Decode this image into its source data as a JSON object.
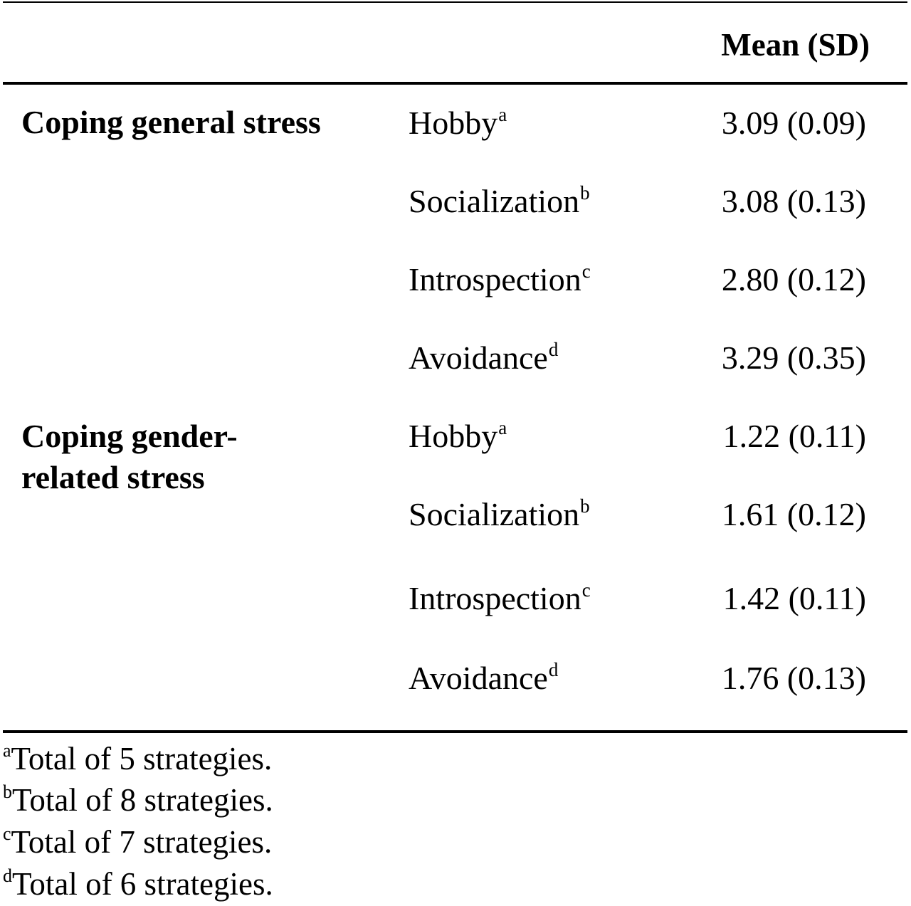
{
  "table": {
    "header": {
      "col1": "",
      "col2": "",
      "col3": "Mean (SD)"
    },
    "groups": [
      {
        "label": "Coping general stress",
        "rows": [
          {
            "strategy": "Hobby",
            "marker": "a",
            "value": "3.09 (0.09)"
          },
          {
            "strategy": "Socialization",
            "marker": "b",
            "value": "3.08 (0.13)"
          },
          {
            "strategy": "Introspection",
            "marker": "c",
            "value": "2.80 (0.12)"
          },
          {
            "strategy": "Avoidance",
            "marker": "d",
            "value": "3.29 (0.35)"
          }
        ]
      },
      {
        "label": "Coping gender-related stress",
        "rows": [
          {
            "strategy": "Hobby",
            "marker": "a",
            "value": "1.22 (0.11)"
          },
          {
            "strategy": "Socialization",
            "marker": "b",
            "value": "1.61 (0.12)"
          },
          {
            "strategy": "Introspection",
            "marker": "c",
            "value": "1.42 (0.11)"
          },
          {
            "strategy": "Avoidance",
            "marker": "d",
            "value": "1.76 (0.13)"
          }
        ]
      }
    ],
    "footnotes": [
      {
        "marker": "a",
        "text": "Total of 5 strategies."
      },
      {
        "marker": "b",
        "text": "Total of 8 strategies."
      },
      {
        "marker": "c",
        "text": "Total of 7 strategies."
      },
      {
        "marker": "d",
        "text": "Total of 6 strategies."
      }
    ]
  }
}
